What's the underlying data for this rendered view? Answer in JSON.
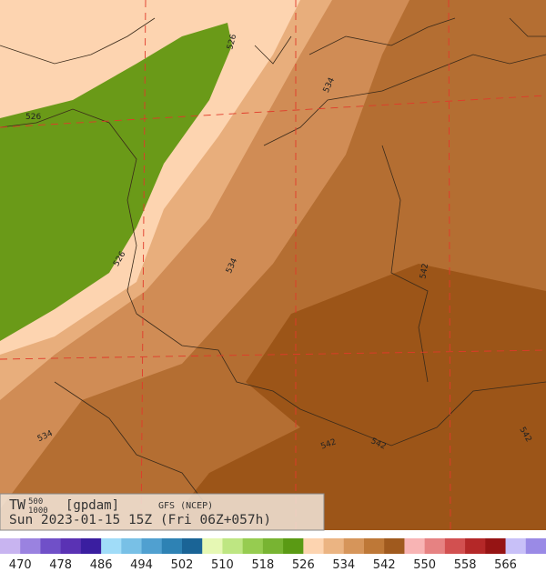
{
  "header": {
    "field": "TW",
    "upper_level": "500",
    "lower_level": "1000",
    "units": "[gpdam]",
    "model": "GFS (NCEP)",
    "valid": "Sun 2023-01-15 15Z (Fri 06Z+057h)"
  },
  "contour_labels": [
    "526",
    "526",
    "526",
    "534",
    "534",
    "534",
    "542",
    "542",
    "542",
    "542"
  ],
  "legend": {
    "colors": [
      "#c8b4f0",
      "#9a82e0",
      "#7050c8",
      "#5a32b4",
      "#3a1ea0",
      "#a0dcf8",
      "#78c0e6",
      "#50a0d0",
      "#2e82b4",
      "#1a6496",
      "#e6f8b4",
      "#bee682",
      "#96cc50",
      "#78b432",
      "#5a9a14",
      "#fdd4b0",
      "#ebb482",
      "#d6955a",
      "#be7837",
      "#a05a1e",
      "#f8b4b4",
      "#e68282",
      "#d25050",
      "#b42828",
      "#961414",
      "#c8c0f8",
      "#9a8ae6"
    ],
    "labels": [
      470,
      478,
      486,
      494,
      502,
      510,
      518,
      526,
      534,
      542,
      550,
      558,
      566
    ]
  }
}
